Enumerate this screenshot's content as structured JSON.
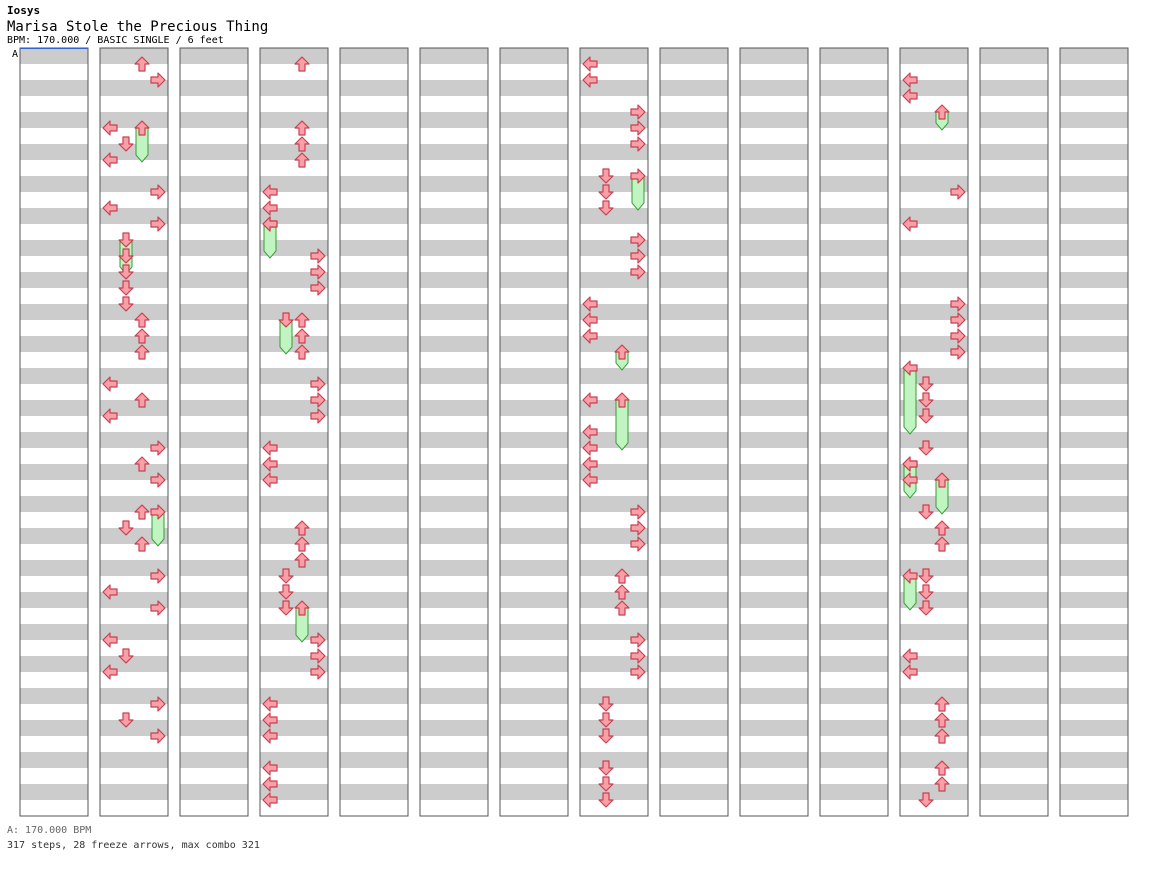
{
  "header": {
    "artist": "Iosys",
    "title": "Marisa Stole the Precious Thing",
    "info": "BPM: 170.000 / BASIC SINGLE / 6 feet",
    "bpm_marker": "A"
  },
  "footer": {
    "bpm_line": "A: 170.000 BPM",
    "stats": "317 steps, 28 freeze arrows, max combo 321"
  },
  "colors": {
    "note": "#f8a0a8",
    "note_stroke": "#c84050",
    "note_blue": "#8ac8f8",
    "note_blue_stroke": "#3a7ac8",
    "freeze_body": "#c0f4c0",
    "freeze_stroke": "#3a9a3a",
    "row_gray": "#cccccc"
  },
  "chart_data": {
    "type": "step-chart",
    "columns": 14,
    "beats_per_column": 12,
    "lanes": [
      "left",
      "down",
      "up",
      "right"
    ],
    "arrow_icons": {
      "left": "left-arrow-icon",
      "down": "down-arrow-icon",
      "up": "up-arrow-icon",
      "right": "right-arrow-icon"
    },
    "note_format": "[column, beat, lane]",
    "notes": [
      [
        1,
        0.25,
        "up"
      ],
      [
        1,
        0.5,
        "right"
      ],
      [
        1,
        1.25,
        "left"
      ],
      [
        1,
        1.5,
        "down"
      ],
      [
        1,
        1.75,
        "left"
      ],
      [
        1,
        2.25,
        "right"
      ],
      [
        1,
        2.5,
        "left"
      ],
      [
        1,
        2.75,
        "right"
      ],
      [
        1,
        3.25,
        "down"
      ],
      [
        1,
        3.5,
        "down"
      ],
      [
        1,
        3.75,
        "down"
      ],
      [
        1,
        4.0,
        "down"
      ],
      [
        1,
        4.25,
        "up"
      ],
      [
        1,
        4.5,
        "up"
      ],
      [
        1,
        4.75,
        "up"
      ],
      [
        1,
        5.25,
        "left"
      ],
      [
        1,
        5.5,
        "up"
      ],
      [
        1,
        5.75,
        "left"
      ],
      [
        1,
        6.25,
        "right"
      ],
      [
        1,
        6.5,
        "up"
      ],
      [
        1,
        6.75,
        "right"
      ],
      [
        1,
        7.25,
        "up"
      ],
      [
        1,
        7.5,
        "down"
      ],
      [
        1,
        7.75,
        "up"
      ],
      [
        1,
        8.25,
        "right"
      ],
      [
        1,
        8.5,
        "left"
      ],
      [
        1,
        8.75,
        "right"
      ],
      [
        1,
        9.25,
        "left"
      ],
      [
        1,
        9.5,
        "down"
      ],
      [
        1,
        9.75,
        "left"
      ],
      [
        1,
        10.25,
        "right"
      ],
      [
        1,
        10.5,
        "down"
      ],
      [
        1,
        10.75,
        "right"
      ],
      [
        3,
        0.25,
        "up"
      ],
      [
        3,
        1.25,
        "up"
      ],
      [
        3,
        1.5,
        "up"
      ],
      [
        3,
        1.75,
        "up"
      ],
      [
        3,
        2.25,
        "left"
      ],
      [
        3,
        2.5,
        "left"
      ],
      [
        3,
        2.75,
        "left"
      ],
      [
        3,
        3.25,
        "right"
      ],
      [
        3,
        3.5,
        "right"
      ],
      [
        3,
        3.75,
        "right"
      ],
      [
        3,
        4.25,
        "up"
      ],
      [
        3,
        4.5,
        "up"
      ],
      [
        3,
        4.75,
        "up"
      ],
      [
        3,
        5.25,
        "right"
      ],
      [
        3,
        5.5,
        "right"
      ],
      [
        3,
        5.75,
        "right"
      ],
      [
        3,
        6.25,
        "left"
      ],
      [
        3,
        6.5,
        "left"
      ],
      [
        3,
        6.75,
        "left"
      ],
      [
        3,
        7.5,
        "up"
      ],
      [
        3,
        7.75,
        "up"
      ],
      [
        3,
        8.0,
        "up"
      ],
      [
        3,
        8.25,
        "down"
      ],
      [
        3,
        8.5,
        "down"
      ],
      [
        3,
        8.75,
        "down"
      ],
      [
        3,
        9.25,
        "right"
      ],
      [
        3,
        9.5,
        "right"
      ],
      [
        3,
        9.75,
        "right"
      ],
      [
        3,
        10.25,
        "left"
      ],
      [
        3,
        10.5,
        "left"
      ],
      [
        3,
        10.75,
        "left"
      ],
      [
        3,
        11.25,
        "left"
      ],
      [
        3,
        11.5,
        "left"
      ],
      [
        3,
        11.75,
        "left"
      ],
      [
        7,
        0.25,
        "left"
      ],
      [
        7,
        0.5,
        "left"
      ],
      [
        7,
        1.0,
        "right"
      ],
      [
        7,
        1.25,
        "right"
      ],
      [
        7,
        1.5,
        "right"
      ],
      [
        7,
        2.0,
        "down"
      ],
      [
        7,
        2.25,
        "down"
      ],
      [
        7,
        2.5,
        "down"
      ],
      [
        7,
        3.0,
        "right"
      ],
      [
        7,
        3.25,
        "right"
      ],
      [
        7,
        3.5,
        "right"
      ],
      [
        7,
        4.0,
        "left"
      ],
      [
        7,
        4.25,
        "left"
      ],
      [
        7,
        4.5,
        "left"
      ],
      [
        7,
        5.5,
        "left"
      ],
      [
        7,
        6.0,
        "left"
      ],
      [
        7,
        6.25,
        "left"
      ],
      [
        7,
        6.5,
        "left"
      ],
      [
        7,
        6.75,
        "left"
      ],
      [
        7,
        7.25,
        "right"
      ],
      [
        7,
        7.5,
        "right"
      ],
      [
        7,
        7.75,
        "right"
      ],
      [
        7,
        8.25,
        "up"
      ],
      [
        7,
        8.5,
        "up"
      ],
      [
        7,
        8.75,
        "up"
      ],
      [
        7,
        9.25,
        "right"
      ],
      [
        7,
        9.5,
        "right"
      ],
      [
        7,
        9.75,
        "right"
      ],
      [
        7,
        10.25,
        "down"
      ],
      [
        7,
        10.5,
        "down"
      ],
      [
        7,
        10.75,
        "down"
      ],
      [
        7,
        11.25,
        "down"
      ],
      [
        7,
        11.5,
        "down"
      ],
      [
        7,
        11.75,
        "down"
      ],
      [
        11,
        0.5,
        "left"
      ],
      [
        11,
        0.75,
        "left"
      ],
      [
        11,
        2.25,
        "right"
      ],
      [
        11,
        2.75,
        "left"
      ],
      [
        11,
        4.0,
        "right"
      ],
      [
        11,
        4.25,
        "right"
      ],
      [
        11,
        4.5,
        "right"
      ],
      [
        11,
        4.75,
        "right"
      ],
      [
        11,
        5.25,
        "down"
      ],
      [
        11,
        5.5,
        "down"
      ],
      [
        11,
        5.75,
        "down"
      ],
      [
        11,
        6.25,
        "down"
      ],
      [
        11,
        6.5,
        "left"
      ],
      [
        11,
        6.75,
        "left"
      ],
      [
        11,
        7.25,
        "down"
      ],
      [
        11,
        7.5,
        "up"
      ],
      [
        11,
        7.75,
        "up"
      ],
      [
        11,
        8.25,
        "down"
      ],
      [
        11,
        8.5,
        "down"
      ],
      [
        11,
        8.75,
        "down"
      ],
      [
        11,
        9.5,
        "left"
      ],
      [
        11,
        9.75,
        "left"
      ],
      [
        11,
        10.25,
        "up"
      ],
      [
        11,
        10.5,
        "up"
      ],
      [
        11,
        10.75,
        "up"
      ],
      [
        11,
        11.25,
        "up"
      ],
      [
        11,
        11.5,
        "up"
      ],
      [
        11,
        11.75,
        "down"
      ]
    ],
    "freezes_format": "[column, start_beat, end_beat, lane]",
    "freezes": [
      [
        1,
        1.25,
        1.75,
        "up"
      ],
      [
        1,
        3.0,
        3.5,
        "down"
      ],
      [
        1,
        7.25,
        7.75,
        "right"
      ],
      [
        3,
        2.75,
        3.25,
        "left"
      ],
      [
        3,
        4.25,
        4.75,
        "down"
      ],
      [
        3,
        8.75,
        9.25,
        "up"
      ],
      [
        7,
        2.0,
        2.5,
        "right"
      ],
      [
        7,
        4.75,
        5.0,
        "up"
      ],
      [
        7,
        5.5,
        6.25,
        "up"
      ],
      [
        11,
        1.0,
        1.25,
        "up"
      ],
      [
        11,
        5.0,
        6.0,
        "left"
      ],
      [
        11,
        6.5,
        7.0,
        "left"
      ],
      [
        11,
        6.75,
        7.25,
        "up"
      ],
      [
        11,
        8.25,
        8.75,
        "left"
      ]
    ]
  }
}
